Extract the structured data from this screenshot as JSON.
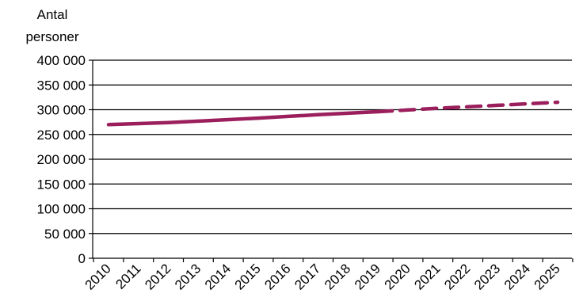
{
  "chart_data": {
    "type": "line",
    "title": "",
    "ylabel": "Antal personer",
    "ylabel_lines": [
      "Antal",
      "personer"
    ],
    "xlabel": "",
    "x": [
      2010,
      2011,
      2012,
      2013,
      2014,
      2015,
      2016,
      2017,
      2018,
      2019,
      2020,
      2021,
      2022,
      2023,
      2024,
      2025
    ],
    "x_tick_labels": [
      "2010",
      "2011",
      "2012",
      "2013",
      "2014",
      "2015",
      "2016",
      "2017",
      "2018",
      "2019",
      "2020",
      "2021",
      "2022",
      "2023",
      "2024",
      "2025"
    ],
    "y_ticks": [
      0,
      50000,
      100000,
      150000,
      200000,
      250000,
      300000,
      350000,
      400000
    ],
    "y_tick_labels": [
      "0",
      "50 000",
      "100 000",
      "150 000",
      "200 000",
      "250 000",
      "300 000",
      "350 000",
      "400 000"
    ],
    "ylim": [
      0,
      400000
    ],
    "grid": "horizontal",
    "series": [
      {
        "segment": "historical",
        "style": "solid",
        "color": "#9b1f5c",
        "x": [
          2010,
          2011,
          2012,
          2013,
          2014,
          2015,
          2016,
          2017,
          2018,
          2019
        ],
        "values": [
          270000,
          272000,
          274000,
          277000,
          280000,
          283000,
          286500,
          290000,
          293000,
          296000
        ]
      },
      {
        "segment": "projection",
        "style": "dashed",
        "color": "#9b1f5c",
        "x": [
          2019,
          2020,
          2021,
          2022,
          2023,
          2024,
          2025
        ],
        "values": [
          296000,
          299500,
          303000,
          306000,
          309000,
          312000,
          315000
        ]
      }
    ]
  }
}
